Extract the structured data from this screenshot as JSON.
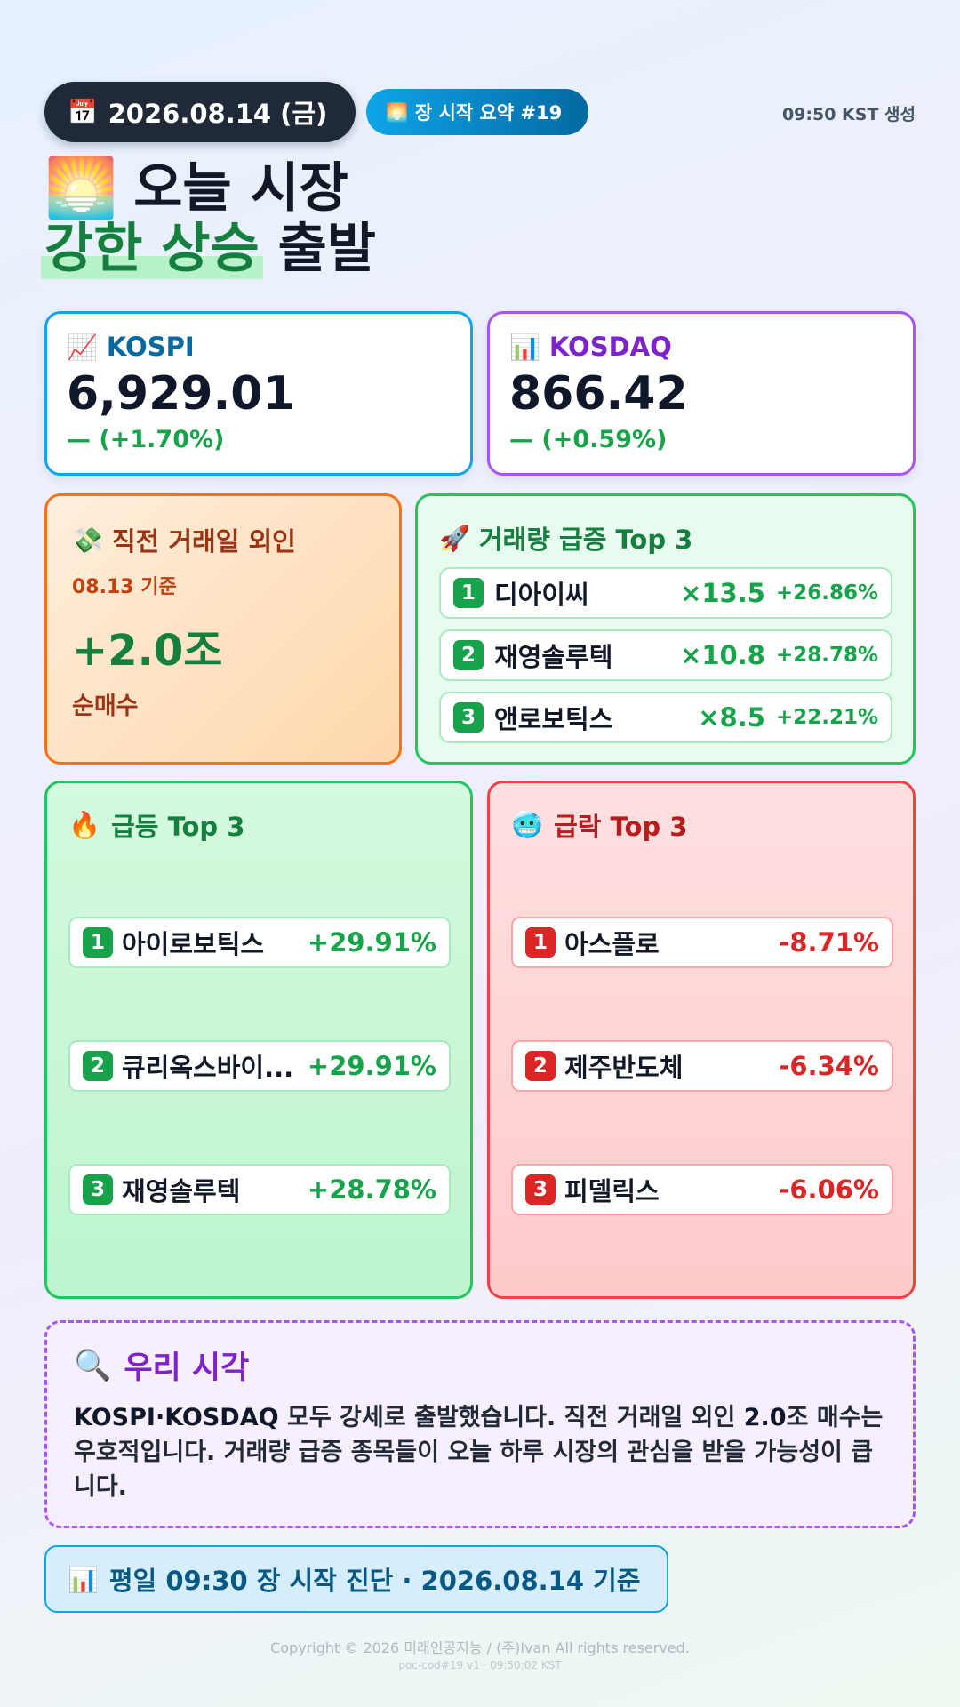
{
  "header": {
    "date_icon": "📅",
    "date": "2026.08.14 (금)",
    "summary_icon": "🌅",
    "summary_label": "장 시작 요약 #19",
    "generated": "09:50 KST 생성"
  },
  "headline": {
    "icon": "🌅",
    "line1": "오늘 시장",
    "highlight": "강한 상승",
    "suffix": " 출발"
  },
  "indices": {
    "kospi": {
      "icon": "📈",
      "name": "KOSPI",
      "value": "6,929.01",
      "change": "— (+1.70%)"
    },
    "kosdaq": {
      "icon": "📊",
      "name": "KOSDAQ",
      "value": "866.42",
      "change": "— (+0.59%)"
    }
  },
  "foreign": {
    "icon": "💸",
    "title": "직전 거래일 외인",
    "base": "08.13 기준",
    "amount": "+2.0조",
    "label": "순매수"
  },
  "volume": {
    "icon": "🚀",
    "title": "거래량 급증 Top 3",
    "items": [
      {
        "rank": "1",
        "name": "디아이씨",
        "mult": "×13.5",
        "rate": "+26.86%"
      },
      {
        "rank": "2",
        "name": "재영솔루텍",
        "mult": "×10.8",
        "rate": "+28.78%"
      },
      {
        "rank": "3",
        "name": "앤로보틱스",
        "mult": "×8.5",
        "rate": "+22.21%"
      }
    ]
  },
  "gainers": {
    "icon": "🔥",
    "title": "급등 Top 3",
    "items": [
      {
        "rank": "1",
        "name": "아이로보틱스",
        "rate": "+29.91%"
      },
      {
        "rank": "2",
        "name": "큐리옥스바이...",
        "rate": "+29.91%"
      },
      {
        "rank": "3",
        "name": "재영솔루텍",
        "rate": "+28.78%"
      }
    ]
  },
  "losers": {
    "icon": "🥶",
    "title": "급락 Top 3",
    "items": [
      {
        "rank": "1",
        "name": "아스플로",
        "rate": "-8.71%"
      },
      {
        "rank": "2",
        "name": "제주반도체",
        "rate": "-6.34%"
      },
      {
        "rank": "3",
        "name": "피델릭스",
        "rate": "-6.06%"
      }
    ]
  },
  "view": {
    "icon": "🔍",
    "title": "우리 시각",
    "text_bold": "KOSPI·KOSDAQ",
    "text_rest": " 모두 강세로 출발했습니다. 직전 거래일 외인 ",
    "text_bold2": "2.0",
    "text_end": "조 매수는 우호적입니다. 거래량 급증 종목들이 오늘 하루 시장의 관심을 받을 가능성이 큽니다."
  },
  "diagnosis": {
    "icon": "📊",
    "label": "평일 09:30 장 시작 진단 · 2026.08.14 기준"
  },
  "footer": {
    "copyright": "Copyright © 2026 미래인공지능 / (주)Ivan All rights reserved.",
    "version": "poc-cod#19 v1 · 09:50:02 KST"
  }
}
